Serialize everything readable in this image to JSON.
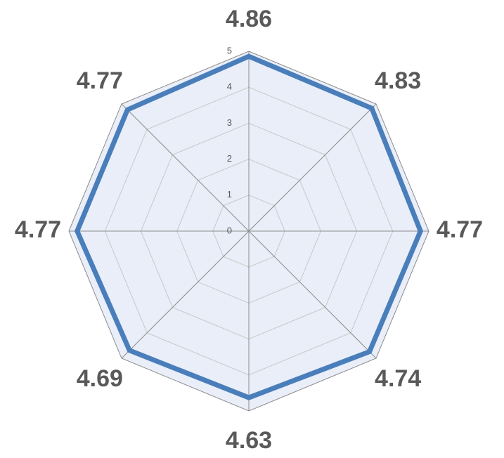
{
  "chart_data": {
    "type": "radar",
    "categories": [
      null,
      null,
      null,
      null,
      null,
      null,
      null,
      null
    ],
    "values": [
      4.86,
      4.83,
      4.77,
      4.74,
      4.63,
      4.69,
      4.77,
      4.77
    ],
    "color": "#4a7ebb",
    "ylim": [
      0,
      5
    ],
    "yticks": [
      0,
      1,
      2,
      3,
      4,
      5
    ],
    "grid": true
  }
}
